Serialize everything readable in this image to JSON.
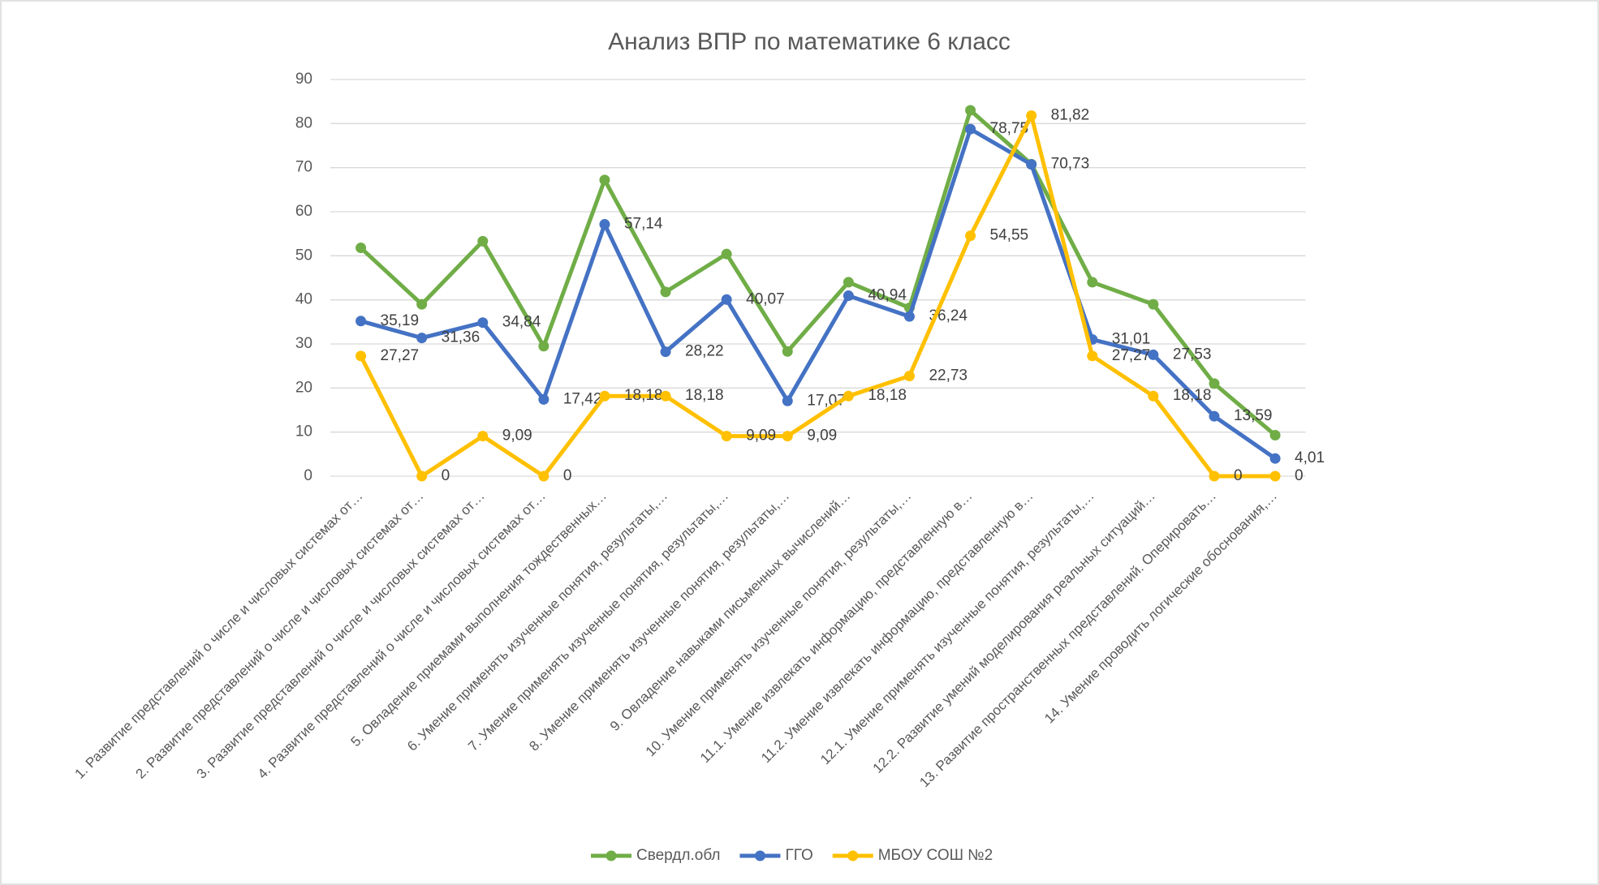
{
  "chart_data": {
    "type": "line",
    "title": "Анализ ВПР по математике 6 класс",
    "categories": [
      "1. Развитие представлений о числе и числовых системах от…",
      "2. Развитие представлений о числе и числовых системах от…",
      "3. Развитие представлений о числе и числовых системах от…",
      "4. Развитие представлений о числе и числовых системах от…",
      "5. Овладение приемами выполнения тождественных…",
      "6. Умение применять изученные понятия, результаты,…",
      "7. Умение применять изученные понятия, результаты,…",
      "8. Умение применять изученные понятия, результаты,…",
      "9. Овладение навыками письменных вычислений…",
      "10. Умение применять изученные понятия, результаты,…",
      "11.1. Умение извлекать информацию, представленную в…",
      "11.2. Умение извлекать информацию, представленную в…",
      "12.1. Умение применять изученные понятия, результаты,…",
      "12.2. Развитие умений моделирования реальных ситуаций…",
      "13. Развитие пространственных представлений. Оперировать…",
      "14. Умение проводить логические обоснования,…"
    ],
    "series": [
      {
        "name": "Свердл.обл",
        "color": "#70ad47",
        "values": [
          51.8,
          39,
          53.3,
          29.5,
          67.2,
          41.8,
          50.4,
          28.3,
          44,
          38.2,
          83,
          70.8,
          44,
          39,
          21,
          9.3
        ]
      },
      {
        "name": "ГГО",
        "color": "#4472c4",
        "values": [
          35.19,
          31.36,
          34.84,
          17.42,
          57.14,
          28.22,
          40.07,
          17.07,
          40.94,
          36.24,
          78.75,
          70.73,
          31.01,
          27.53,
          13.59,
          4.01
        ],
        "value_labels": [
          "35,19",
          "31,36",
          "34,84",
          "17,42",
          "57,14",
          "28,22",
          "40,07",
          "17,07",
          "40,94",
          "36,24",
          "78,75",
          "70,73",
          "31,01",
          "27,53",
          "13,59",
          "4,01"
        ]
      },
      {
        "name": "МБОУ СОШ №2",
        "color": "#ffc000",
        "values": [
          27.27,
          0,
          9.09,
          0,
          18.18,
          18.18,
          9.09,
          9.09,
          18.18,
          22.73,
          54.55,
          81.82,
          27.27,
          18.18,
          0,
          0
        ],
        "value_labels": [
          "27,27",
          "0",
          "9,09",
          "0",
          "18,18",
          "18,18",
          "9,09",
          "9,09",
          "18,18",
          "22,73",
          "54,55",
          "81,82",
          "27,27",
          "18,18",
          "0",
          "0"
        ]
      }
    ],
    "ylim": [
      0,
      90
    ],
    "yticks": [
      0,
      10,
      20,
      30,
      40,
      50,
      60,
      70,
      80,
      90
    ],
    "grid": true,
    "legend": "bottom"
  }
}
